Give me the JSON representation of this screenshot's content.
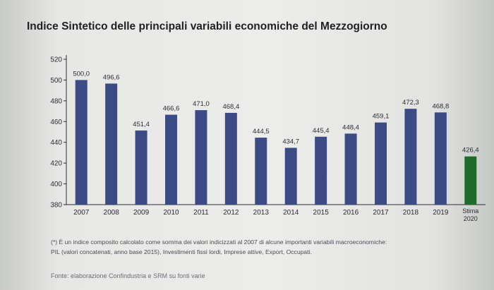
{
  "title": "Indice Sintetico delle principali variabili economiche del Mezzogiorno",
  "chart_data": {
    "type": "bar",
    "title": "Indice Sintetico delle principali variabili economiche del Mezzogiorno",
    "xlabel": "",
    "ylabel": "",
    "ylim": [
      380,
      520
    ],
    "yticks": [
      380,
      400,
      420,
      440,
      460,
      480,
      500,
      520
    ],
    "categories": [
      "2007",
      "2008",
      "2009",
      "2010",
      "2011",
      "2012",
      "2013",
      "2014",
      "2015",
      "2016",
      "2017",
      "2018",
      "2019",
      "Stima 2020"
    ],
    "values": [
      500.0,
      496.6,
      451.4,
      466.6,
      471.0,
      468.4,
      444.5,
      434.7,
      445.4,
      448.4,
      459.1,
      472.3,
      468.8,
      426.4
    ],
    "value_labels": [
      "500,0",
      "496,6",
      "451,4",
      "466,6",
      "471,0",
      "468,4",
      "444,5",
      "434,7",
      "445,4",
      "448,4",
      "459,1",
      "472,3",
      "468,8",
      "426,4"
    ],
    "bar_color": "#3c4a86",
    "highlight_color": "#1f6b2a",
    "highlight_index": 13,
    "grid": false,
    "legend": "none"
  },
  "footnote_line1": "(*) È un indice composito calcolato come somma dei valori indicizzati al 2007 di alcune importanti variabili macroeconomiche:",
  "footnote_line2": "PIL (valori concatenati, anno base 2015), Investimenti fissi lordi, Imprese attive, Export, Occupati.",
  "source": "Fonte: elaborazione Confindustria e SRM su fonti varie"
}
